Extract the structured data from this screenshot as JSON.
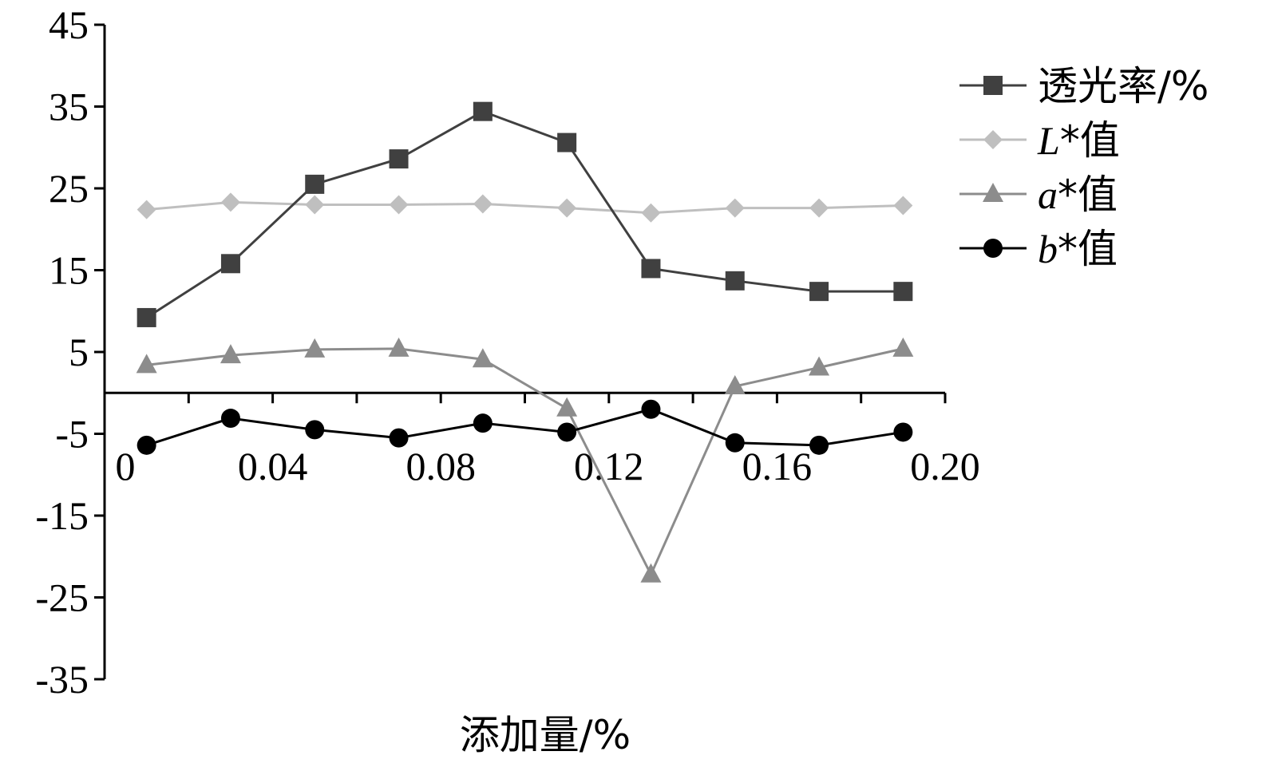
{
  "chart_data": {
    "type": "line",
    "x": [
      0.01,
      0.03,
      0.05,
      0.07,
      0.09,
      0.11,
      0.13,
      0.15,
      0.17,
      0.19
    ],
    "xticks": [
      0,
      0.04,
      0.08,
      0.12,
      0.16,
      0.2
    ],
    "xtick_labels": [
      "0",
      "0.04",
      "0.08",
      "0.12",
      "0.16",
      "0.20"
    ],
    "xlim": [
      0,
      0.2
    ],
    "ylim": [
      -35,
      45
    ],
    "yticks": [
      45,
      35,
      25,
      15,
      5,
      -5,
      -15,
      -25,
      -35
    ],
    "ytick_labels": [
      "45",
      "35",
      "25",
      "15",
      "5",
      "-5",
      "-15",
      "-25",
      "-35"
    ],
    "xlabel": "添加量/%",
    "ylabel": "",
    "title": "",
    "grid": false,
    "legend_position": "top-right",
    "series": [
      {
        "name": "透光率/%",
        "legend_italic": "",
        "legend_plain": "透光率/%",
        "marker": "square",
        "color": "#404040",
        "values": [
          9.2,
          15.8,
          25.5,
          28.6,
          34.4,
          30.6,
          15.2,
          13.7,
          12.4,
          12.4
        ]
      },
      {
        "name": "L*值",
        "legend_italic": "L",
        "legend_plain": "*值",
        "marker": "diamond",
        "color": "#bfbfbf",
        "values": [
          22.4,
          23.3,
          23.0,
          23.0,
          23.1,
          22.6,
          22.0,
          22.6,
          22.6,
          22.9
        ]
      },
      {
        "name": "a*值",
        "legend_italic": "a",
        "legend_plain": "*值",
        "marker": "triangle",
        "color": "#8c8c8c",
        "values": [
          3.4,
          4.6,
          5.3,
          5.4,
          4.1,
          -1.9,
          -22.2,
          0.8,
          3.1,
          5.4
        ]
      },
      {
        "name": "b*值",
        "legend_italic": "b",
        "legend_plain": "*值",
        "marker": "circle",
        "color": "#000000",
        "values": [
          -6.4,
          -3.1,
          -4.5,
          -5.5,
          -3.7,
          -4.8,
          -2.0,
          -6.1,
          -6.4,
          -4.8
        ]
      }
    ]
  }
}
